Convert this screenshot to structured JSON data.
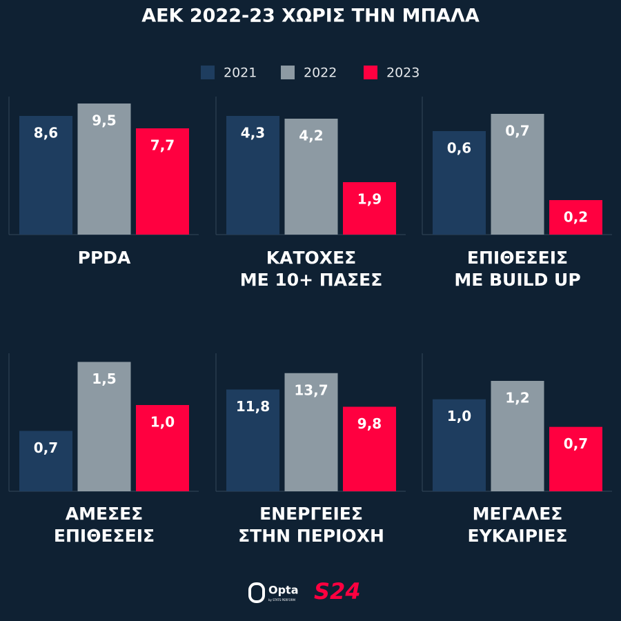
{
  "title": "ΑΕΚ 2022-23 ΧΩΡΙΣ ΤΗΝ ΜΠΑΛΑ",
  "footer": {
    "opta": "Opta",
    "opta_sub": "by STATS PERFORM",
    "brand": "S24"
  },
  "chart_data": [
    {
      "type": "bar",
      "title": [
        "PPDA"
      ],
      "ylim": [
        0,
        10
      ],
      "series": [
        {
          "name": "2021",
          "color": "#1e3d5f",
          "values": [
            8.6
          ],
          "value_labels": [
            "8,6"
          ]
        },
        {
          "name": "2022",
          "color": "#8d9aa3",
          "values": [
            9.5
          ],
          "value_labels": [
            "9,5"
          ]
        },
        {
          "name": "2023",
          "color": "#ff0040",
          "values": [
            7.7
          ],
          "value_labels": [
            "7,7"
          ]
        }
      ]
    },
    {
      "type": "bar",
      "title": [
        "ΚΑΤΟΧΕΣ",
        "ΜΕ 10+ ΠΑΣΕΣ"
      ],
      "ylim": [
        0,
        5
      ],
      "series": [
        {
          "name": "2021",
          "color": "#1e3d5f",
          "values": [
            4.3
          ],
          "value_labels": [
            "4,3"
          ]
        },
        {
          "name": "2022",
          "color": "#8d9aa3",
          "values": [
            4.2
          ],
          "value_labels": [
            "4,2"
          ]
        },
        {
          "name": "2023",
          "color": "#ff0040",
          "values": [
            1.9
          ],
          "value_labels": [
            "1,9"
          ]
        }
      ]
    },
    {
      "type": "bar",
      "title": [
        "ΕΠΙΘΕΣΕΙΣ",
        "ΜΕ BUILD UP"
      ],
      "ylim": [
        0,
        0.8
      ],
      "series": [
        {
          "name": "2021",
          "color": "#1e3d5f",
          "values": [
            0.6
          ],
          "value_labels": [
            "0,6"
          ]
        },
        {
          "name": "2022",
          "color": "#8d9aa3",
          "values": [
            0.7
          ],
          "value_labels": [
            "0,7"
          ]
        },
        {
          "name": "2023",
          "color": "#ff0040",
          "values": [
            0.2
          ],
          "value_labels": [
            "0,2"
          ]
        }
      ]
    },
    {
      "type": "bar",
      "title": [
        "ΑΜΕΣΕΣ",
        "ΕΠΙΘΕΣΕΙΣ"
      ],
      "ylim": [
        0,
        1.6
      ],
      "series": [
        {
          "name": "2021",
          "color": "#1e3d5f",
          "values": [
            0.7
          ],
          "value_labels": [
            "0,7"
          ]
        },
        {
          "name": "2022",
          "color": "#8d9aa3",
          "values": [
            1.5
          ],
          "value_labels": [
            "1,5"
          ]
        },
        {
          "name": "2023",
          "color": "#ff0040",
          "values": [
            1.0
          ],
          "value_labels": [
            "1,0"
          ]
        }
      ]
    },
    {
      "type": "bar",
      "title": [
        "ΕΝΕΡΓΕΙΕΣ",
        "ΣΤΗΝ ΠΕΡΙΟΧΗ"
      ],
      "ylim": [
        0,
        16
      ],
      "series": [
        {
          "name": "2021",
          "color": "#1e3d5f",
          "values": [
            11.8
          ],
          "value_labels": [
            "11,8"
          ]
        },
        {
          "name": "2022",
          "color": "#8d9aa3",
          "values": [
            13.7
          ],
          "value_labels": [
            "13,7"
          ]
        },
        {
          "name": "2023",
          "color": "#ff0040",
          "values": [
            9.8
          ],
          "value_labels": [
            "9,8"
          ]
        }
      ]
    },
    {
      "type": "bar",
      "title": [
        "ΜΕΓΑΛΕΣ",
        "ΕΥΚΑΙΡΙΕΣ"
      ],
      "ylim": [
        0,
        1.5
      ],
      "series": [
        {
          "name": "2021",
          "color": "#1e3d5f",
          "values": [
            1.0
          ],
          "value_labels": [
            "1,0"
          ]
        },
        {
          "name": "2022",
          "color": "#8d9aa3",
          "values": [
            1.2
          ],
          "value_labels": [
            "1,2"
          ]
        },
        {
          "name": "2023",
          "color": "#ff0040",
          "values": [
            0.7
          ],
          "value_labels": [
            "0,7"
          ]
        }
      ]
    }
  ]
}
